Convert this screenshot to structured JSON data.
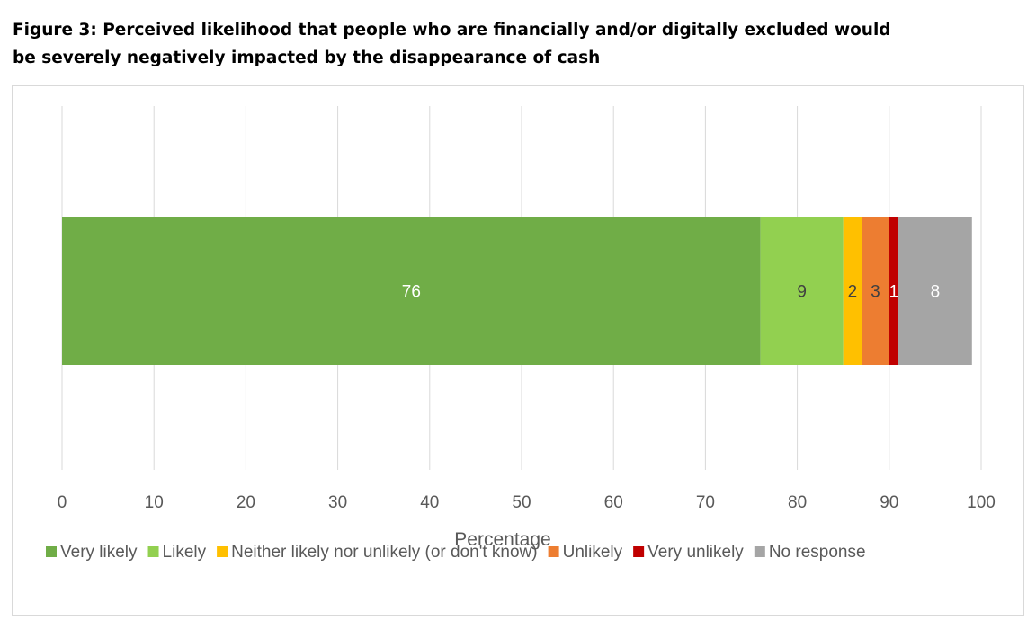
{
  "figure": {
    "title_line1": "Figure 3: Perceived likelihood that people who are financially and/or digitally excluded would",
    "title_line2": "be severely negatively impacted by the disappearance of cash"
  },
  "chart_data": {
    "type": "bar",
    "orientation": "horizontal",
    "stacked": true,
    "categories": [
      ""
    ],
    "series": [
      {
        "name": "Very likely",
        "values": [
          76
        ],
        "color": "#70ad47",
        "label_color": "#ffffff"
      },
      {
        "name": "Likely",
        "values": [
          9
        ],
        "color": "#92d050",
        "label_color": "#404040"
      },
      {
        "name": "Neither likely nor unlikely (or don't know)",
        "values": [
          2
        ],
        "color": "#ffc000",
        "label_color": "#404040"
      },
      {
        "name": "Unlikely",
        "values": [
          3
        ],
        "color": "#ed7d31",
        "label_color": "#404040"
      },
      {
        "name": "Very unlikely",
        "values": [
          1
        ],
        "color": "#c00000",
        "label_color": "#ffffff"
      },
      {
        "name": "No response",
        "values": [
          8
        ],
        "color": "#a5a5a5",
        "label_color": "#ffffff"
      }
    ],
    "xlabel": "Percentage",
    "ylabel": "",
    "xlim": [
      0,
      100
    ],
    "xticks": [
      0,
      10,
      20,
      30,
      40,
      50,
      60,
      70,
      80,
      90,
      100
    ],
    "grid": true,
    "legend_position": "bottom",
    "data_labels": true
  }
}
